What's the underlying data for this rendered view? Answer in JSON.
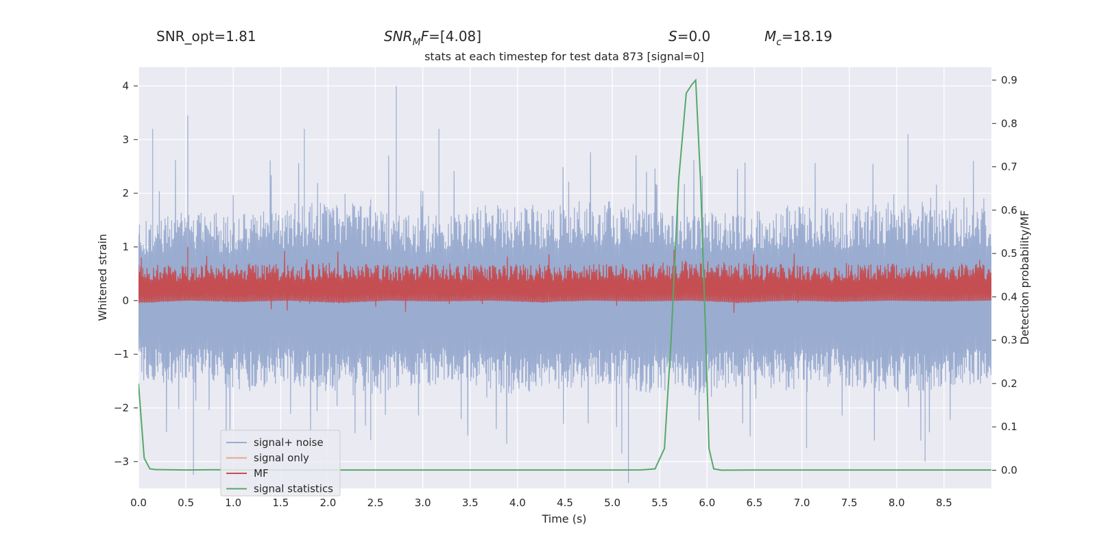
{
  "header": {
    "snr_opt": "SNR_opt=1.81",
    "snr_mf_base": "SNR",
    "snr_mf_sub": "M",
    "snr_mf_rest": "F",
    "snr_mf_value": "=[4.08]",
    "s_symbol": "S",
    "s_value": "=0.0",
    "mc_symbol": "M",
    "mc_sub": "c",
    "mc_value": "=18.19"
  },
  "chart_data": {
    "type": "line",
    "title": "stats at each timestep for test data 873 [signal=0]",
    "xlabel": "Time (s)",
    "ylabel": "Whitened strain",
    "ylabel_right": "Detection probability/MF",
    "xlim": [
      0,
      9.0
    ],
    "ylim": [
      -3.5,
      4.35
    ],
    "ylim_right": [
      -0.042,
      0.93
    ],
    "xticks": [
      "0.0",
      "0.5",
      "1.0",
      "1.5",
      "2.0",
      "2.5",
      "3.0",
      "3.5",
      "4.0",
      "4.5",
      "5.0",
      "5.5",
      "6.0",
      "6.5",
      "7.0",
      "7.5",
      "8.0",
      "8.5"
    ],
    "yticks": [
      "4",
      "3",
      "2",
      "1",
      "0",
      "−1",
      "−2",
      "−3"
    ],
    "yticks_right": [
      "0.9",
      "0.8",
      "0.7",
      "0.6",
      "0.5",
      "0.4",
      "0.3",
      "0.2",
      "0.1",
      "0.0"
    ],
    "grid": true,
    "legend_position": "lower-left",
    "series": [
      {
        "name": "signal+ noise",
        "color": "#9aacd0",
        "axis": "left",
        "band_upper": [
          1.5,
          1.7,
          1.6,
          1.8,
          1.9,
          1.7,
          1.6,
          1.8,
          1.7,
          1.9,
          1.8,
          1.7,
          1.6,
          1.8,
          1.7,
          1.9,
          1.8,
          1.7
        ],
        "band_lower": [
          -1.5,
          -1.6,
          -1.7,
          -1.6,
          -1.8,
          -1.7,
          -1.6,
          -1.7,
          -1.8,
          -1.6,
          -1.7,
          -1.8,
          -1.6,
          -1.7,
          -1.6,
          -1.8,
          -1.7,
          -1.6
        ],
        "peaks": [
          {
            "x": 0.52,
            "y": 3.45
          },
          {
            "x": 0.15,
            "y": 3.2
          },
          {
            "x": 1.75,
            "y": 3.2
          },
          {
            "x": 2.72,
            "y": 4.0
          },
          {
            "x": 3.17,
            "y": 3.2
          },
          {
            "x": 8.12,
            "y": 3.1
          },
          {
            "x": 0.58,
            "y": -3.25
          },
          {
            "x": 5.17,
            "y": -3.4
          },
          {
            "x": 5.1,
            "y": -2.85
          },
          {
            "x": 8.3,
            "y": -3.0
          },
          {
            "x": 2.45,
            "y": -2.6
          },
          {
            "x": 7.05,
            "y": -2.75
          }
        ]
      },
      {
        "name": "signal only",
        "color": "#e8a68a",
        "axis": "left",
        "values": []
      },
      {
        "name": "MF",
        "color": "#c44e52",
        "axis": "left",
        "band_upper": [
          0.7,
          0.65,
          0.7,
          0.68,
          0.72,
          0.66,
          0.7,
          0.68,
          0.67,
          0.7,
          0.69,
          0.75,
          0.7,
          0.68,
          0.66,
          0.7,
          0.72,
          0.69
        ],
        "band_lower": [
          -0.05,
          0.0,
          -0.03,
          0.0,
          -0.05,
          0.0,
          -0.02,
          0.0,
          -0.04,
          0.0,
          -0.02,
          0.0,
          -0.05,
          0.0,
          -0.03,
          0.0,
          -0.02,
          0.0
        ],
        "peaks": [
          {
            "x": 0.52,
            "y": 1.0
          },
          {
            "x": 5.65,
            "y": 0.95
          },
          {
            "x": 0.03,
            "y": 0.8
          }
        ]
      },
      {
        "name": "signal statistics",
        "color": "#55a868",
        "axis": "right",
        "x": [
          0.0,
          0.06,
          0.12,
          0.18,
          0.3,
          0.5,
          0.8,
          1.0,
          2.0,
          3.0,
          4.0,
          5.0,
          5.3,
          5.45,
          5.55,
          5.62,
          5.7,
          5.78,
          5.84,
          5.88,
          5.93,
          5.98,
          6.02,
          6.07,
          6.15,
          6.5,
          7.0,
          8.0,
          9.0
        ],
        "values": [
          0.2,
          0.028,
          0.003,
          0.0015,
          0.001,
          0.0005,
          0.001,
          0.0005,
          0.0005,
          0.0005,
          0.0005,
          0.0005,
          0.0007,
          0.003,
          0.05,
          0.3,
          0.67,
          0.87,
          0.89,
          0.9,
          0.67,
          0.34,
          0.05,
          0.003,
          0.0,
          0.0005,
          0.0005,
          0.0005,
          0.0005
        ]
      }
    ]
  }
}
